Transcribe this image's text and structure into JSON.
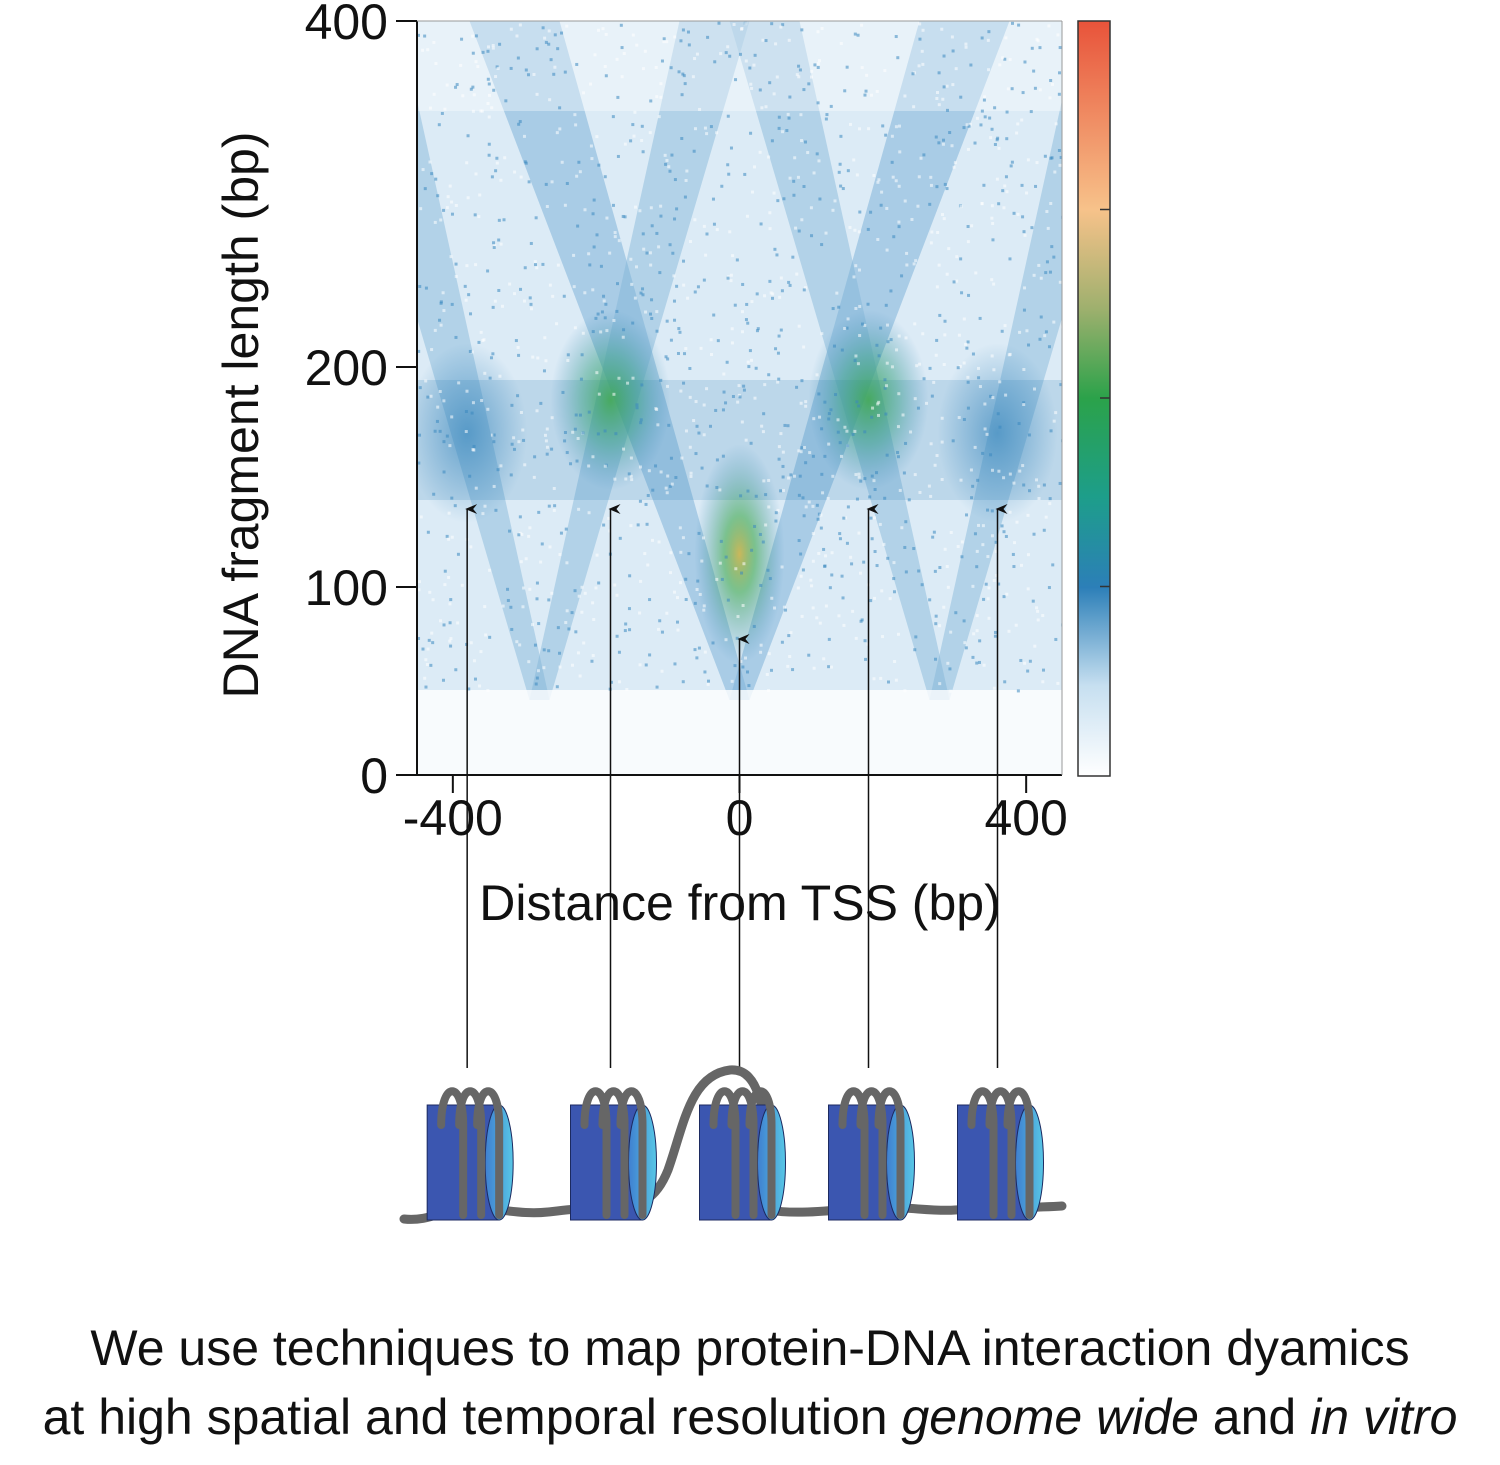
{
  "chart_data": {
    "type": "heatmap",
    "title": "",
    "xlabel": "Distance from TSS (bp)",
    "ylabel": "DNA fragment length (bp)",
    "xlim": [
      -450,
      450
    ],
    "ylim": [
      0,
      400
    ],
    "xticks": [
      -400,
      0,
      400
    ],
    "xtick_labels": [
      "-400",
      "0",
      "400"
    ],
    "yticks": [
      0,
      100,
      200,
      400
    ],
    "ytick_labels": [
      "0",
      "100",
      "200",
      "400"
    ],
    "colorbar": {
      "colors": [
        "#ffffff",
        "#c6dff0",
        "#2c7fb8",
        "#1d9e8a",
        "#2ba24a",
        "#9fb06e",
        "#f7c28a",
        "#e8533a"
      ]
    },
    "hotspots": [
      {
        "x": 0,
        "y": 115,
        "level": 0.75
      },
      {
        "x": -180,
        "y": 185,
        "level": 0.62
      },
      {
        "x": 180,
        "y": 185,
        "level": 0.62
      },
      {
        "x": -380,
        "y": 170,
        "level": 0.42
      },
      {
        "x": 360,
        "y": 170,
        "level": 0.42
      }
    ],
    "arrows_x": [
      -380,
      -180,
      0,
      180,
      360
    ],
    "nucleosomes": 5
  },
  "caption": {
    "line1": "We use techniques to map protein-DNA interaction dyamics",
    "line2_a": "at high spatial and temporal resolution ",
    "line2_b": "genome wide",
    "line2_c": " and ",
    "line2_d": "in vitro"
  }
}
